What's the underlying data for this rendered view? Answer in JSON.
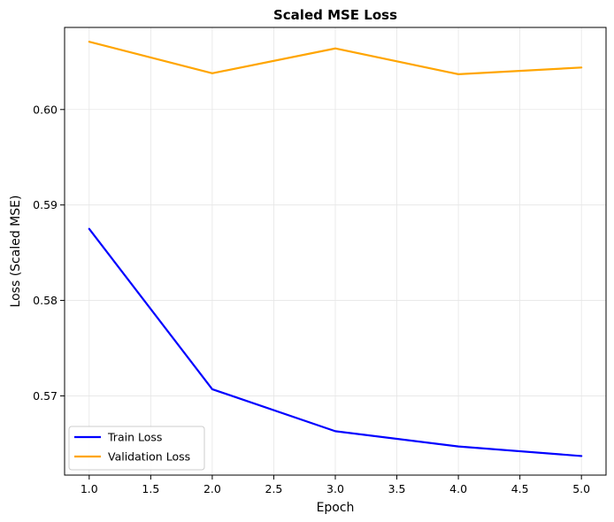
{
  "chart_data": {
    "type": "line",
    "title": "Scaled MSE Loss",
    "xlabel": "Epoch",
    "ylabel": "Loss (Scaled MSE)",
    "x": [
      1.0,
      2.0,
      3.0,
      4.0,
      5.0
    ],
    "xticks": [
      "1.0",
      "1.5",
      "2.0",
      "2.5",
      "3.0",
      "3.5",
      "4.0",
      "4.5",
      "5.0"
    ],
    "yticks": [
      "0.57",
      "0.58",
      "0.59",
      "0.60"
    ],
    "xlim": [
      0.8,
      5.2
    ],
    "ylim": [
      0.5617,
      0.6086
    ],
    "grid": true,
    "legend_position": "lower-left",
    "series": [
      {
        "name": "Train Loss",
        "color": "#0000ff",
        "values": [
          0.5875,
          0.5707,
          0.5663,
          0.5647,
          0.5637
        ]
      },
      {
        "name": "Validation Loss",
        "color": "#ffa500",
        "values": [
          0.6071,
          0.6038,
          0.6064,
          0.6037,
          0.6044
        ]
      }
    ]
  }
}
